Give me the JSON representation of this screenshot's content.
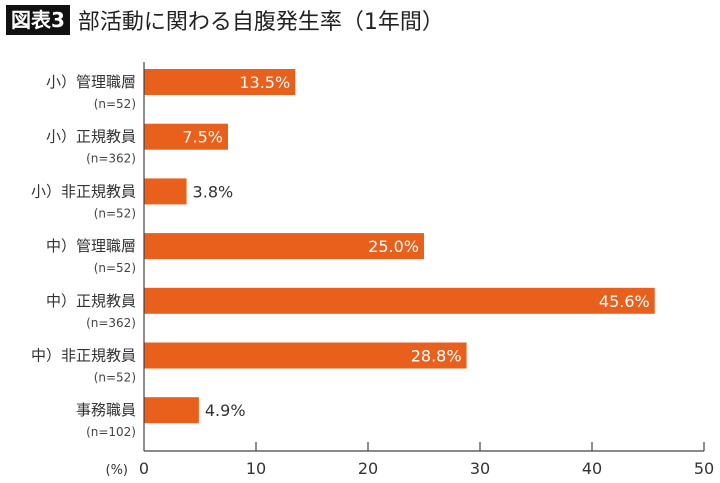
{
  "title": {
    "badge": "図表3",
    "text": "部活動に関わる自腹発生率（1年間）"
  },
  "chart_data": {
    "type": "bar",
    "orientation": "horizontal",
    "title": "部活動に関わる自腹発生率（1年間）",
    "categories": [
      "小）管理職層",
      "小）正規教員",
      "小）非正規教員",
      "中）管理職層",
      "中）正規教員",
      "中）非正規教員",
      "事務職員"
    ],
    "sample_sizes": [
      "(n=52)",
      "(n=362)",
      "(n=52)",
      "(n=52)",
      "(n=362)",
      "(n=52)",
      "(n=102)"
    ],
    "values": [
      13.5,
      7.5,
      3.8,
      25.0,
      45.6,
      28.8,
      4.9
    ],
    "data_labels": [
      "13.5%",
      "7.5%",
      "3.8%",
      "25.0%",
      "45.6%",
      "28.8%",
      "4.9%"
    ],
    "xlabel": "(%)",
    "xlim": [
      0,
      50
    ],
    "xticks": [
      0,
      10,
      20,
      30,
      40,
      50
    ],
    "grid": false,
    "bar_color": "#e8601c"
  }
}
